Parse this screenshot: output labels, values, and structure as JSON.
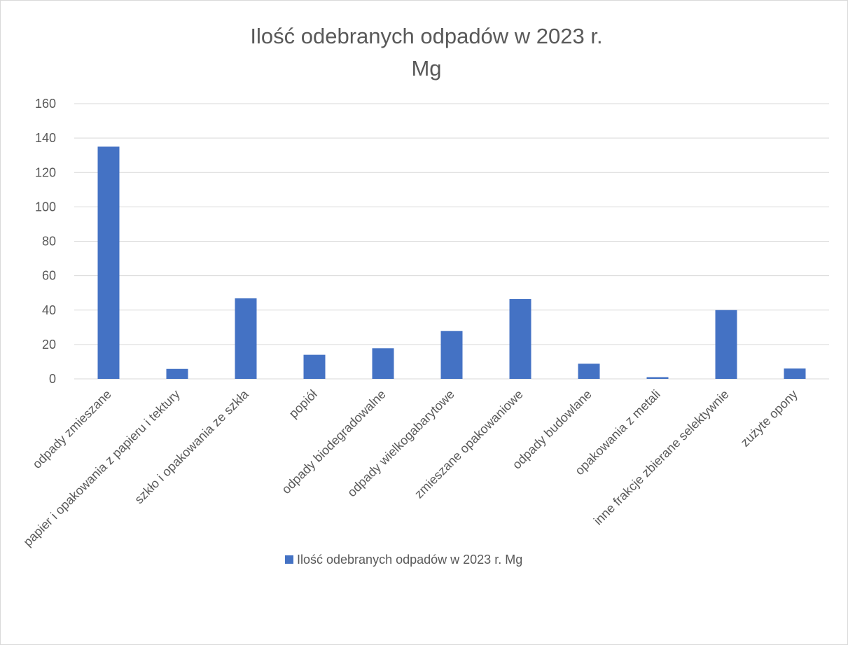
{
  "chart_data": {
    "type": "bar",
    "title_lines": [
      "Ilość odebranych odpadów w 2023 r.",
      "Mg"
    ],
    "categories": [
      "odpady zmieszane",
      "papier i opakowania z papieru i tektury",
      "szkło i opakowania ze szkła",
      "popiół",
      "odpady biodegradowalne",
      "odpady wielkogabarytowe",
      "zmieszane opakowaniowe",
      "odpady budowlane",
      "opakowania z metali",
      "inne frakcje zbierane selektywnie",
      "zużyte opony"
    ],
    "series": [
      {
        "name": "Ilość odebranych odpadów w 2023 r. Mg",
        "values": [
          135,
          5.8,
          46.8,
          14,
          17.8,
          27.8,
          46.4,
          8.8,
          1,
          40,
          6
        ],
        "color": "#4472c4"
      }
    ],
    "ylim": [
      0,
      160
    ],
    "yticks": [
      0,
      20,
      40,
      60,
      80,
      100,
      120,
      140,
      160
    ],
    "grid": true,
    "legend_position": "bottom",
    "colors": {
      "gridline": "#d9d9d9",
      "text": "#595959",
      "bar": "#4472c4"
    }
  }
}
